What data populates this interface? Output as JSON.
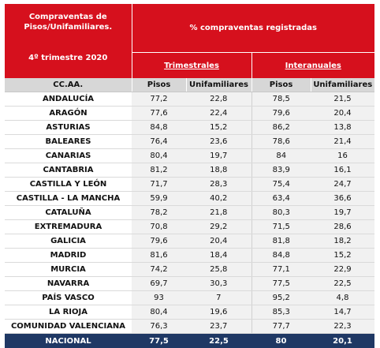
{
  "header": {
    "left_title_line1": "Compraventas de",
    "left_title_line2": "Pisos/Unifamiliares.",
    "left_period": "4º trimestre 2020",
    "main_title": "% compraventas registradas",
    "group_trimestrales": "Trimestrales",
    "group_interanuales": "Interanuales"
  },
  "columns": {
    "ccaa": "CC.AA.",
    "pisos_tri": "Pisos",
    "unif_tri": "Unifamiliares",
    "pisos_inter": "Pisos",
    "unif_inter": "Unifamiliares"
  },
  "rows": [
    {
      "name": "ANDALUCÍA",
      "pt": "77,2",
      "ut": "22,8",
      "pi": "78,5",
      "ui": "21,5"
    },
    {
      "name": "ARAGÓN",
      "pt": "77,6",
      "ut": "22,4",
      "pi": "79,6",
      "ui": "20,4"
    },
    {
      "name": "ASTURIAS",
      "pt": "84,8",
      "ut": "15,2",
      "pi": "86,2",
      "ui": "13,8"
    },
    {
      "name": "BALEARES",
      "pt": "76,4",
      "ut": "23,6",
      "pi": "78,6",
      "ui": "21,4"
    },
    {
      "name": "CANARIAS",
      "pt": "80,4",
      "ut": "19,7",
      "pi": "84",
      "ui": "16"
    },
    {
      "name": "CANTABRIA",
      "pt": "81,2",
      "ut": "18,8",
      "pi": "83,9",
      "ui": "16,1"
    },
    {
      "name": "CASTILLA Y LEÓN",
      "pt": "71,7",
      "ut": "28,3",
      "pi": "75,4",
      "ui": "24,7"
    },
    {
      "name": "CASTILLA - LA MANCHA",
      "pt": "59,9",
      "ut": "40,2",
      "pi": "63,4",
      "ui": "36,6"
    },
    {
      "name": "CATALUÑA",
      "pt": "78,2",
      "ut": "21,8",
      "pi": "80,3",
      "ui": "19,7"
    },
    {
      "name": "EXTREMADURA",
      "pt": "70,8",
      "ut": "29,2",
      "pi": "71,5",
      "ui": "28,6"
    },
    {
      "name": "GALICIA",
      "pt": "79,6",
      "ut": "20,4",
      "pi": "81,8",
      "ui": "18,2"
    },
    {
      "name": "MADRID",
      "pt": "81,6",
      "ut": "18,4",
      "pi": "84,8",
      "ui": "15,2"
    },
    {
      "name": "MURCIA",
      "pt": "74,2",
      "ut": "25,8",
      "pi": "77,1",
      "ui": "22,9"
    },
    {
      "name": "NAVARRA",
      "pt": "69,7",
      "ut": "30,3",
      "pi": "77,5",
      "ui": "22,5"
    },
    {
      "name": "PAÍS VASCO",
      "pt": "93",
      "ut": "7",
      "pi": "95,2",
      "ui": "4,8"
    },
    {
      "name": "LA RIOJA",
      "pt": "80,4",
      "ut": "19,6",
      "pi": "85,3",
      "ui": "14,7"
    },
    {
      "name": "COMUNIDAD VALENCIANA",
      "pt": "76,3",
      "ut": "23,7",
      "pi": "77,7",
      "ui": "22,3"
    }
  ],
  "total": {
    "name": "NACIONAL",
    "pt": "77,5",
    "ut": "22,5",
    "pi": "80",
    "ui": "20,1"
  },
  "colors": {
    "header_red": "#d6101d",
    "total_navy": "#1f3864",
    "column_header_gray": "#d7d7d7"
  }
}
